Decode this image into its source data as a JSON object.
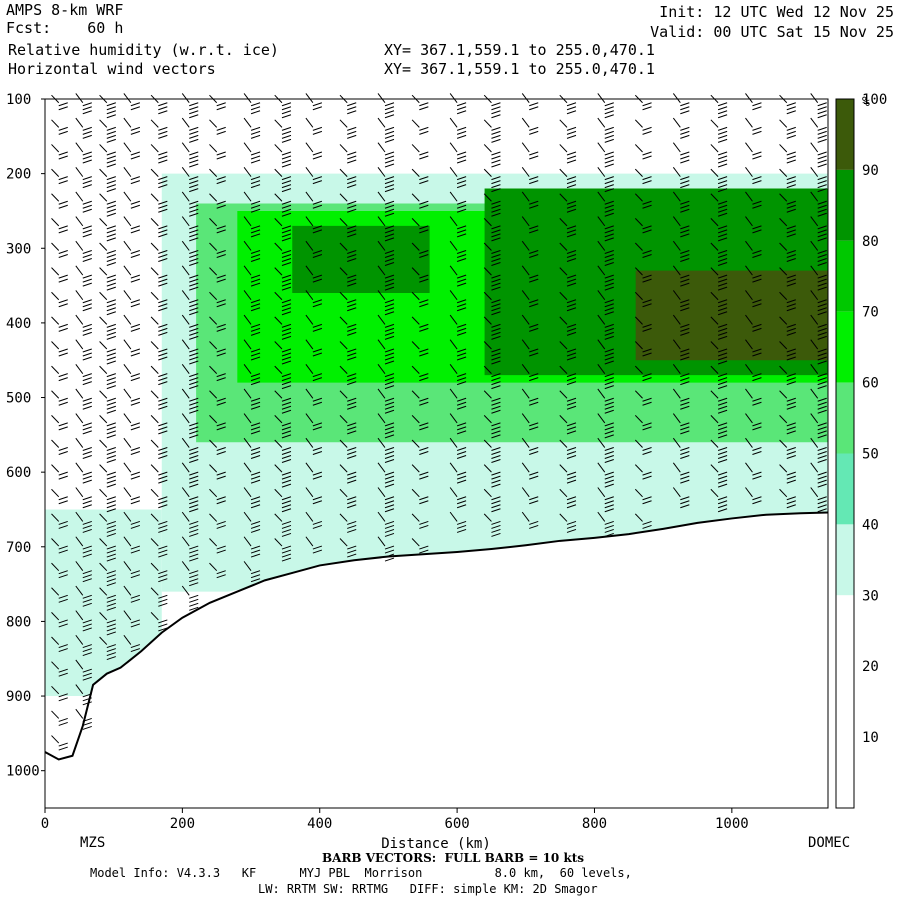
{
  "header": {
    "model": "AMPS 8-km WRF",
    "fcst": "Fcst:    60 h",
    "field1": "Relative humidity (w.r.t. ice)",
    "field2": "Horizontal wind vectors",
    "xy1": "XY= 367.1,559.1 to 255.0,470.1",
    "xy2": "XY= 367.1,559.1 to 255.0,470.1",
    "init": "Init: 12 UTC Wed 12 Nov 25",
    "valid": "Valid: 00 UTC Sat 15 Nov 25"
  },
  "footer": {
    "barb_note": "BARB VECTORS:  FULL BARB = 10 kts",
    "model_info": "Model Info: V4.3.3   KF      MYJ PBL  Morrison          8.0 km,  60 levels,",
    "physics": "LW: RRTM SW: RRTMG   DIFF: simple KM: 2D Smagor"
  },
  "chart_data": {
    "type": "heatmap",
    "title": "Relative humidity (w.r.t. ice)",
    "overlay": "Horizontal wind vectors (barbs)",
    "xlabel": "Distance (km)",
    "ylabel": "",
    "xlim": [
      0,
      1140
    ],
    "ylim": [
      1050,
      100
    ],
    "x_ticks": [
      0,
      200,
      400,
      600,
      800,
      1000
    ],
    "y_ticks": [
      100,
      200,
      300,
      400,
      500,
      600,
      700,
      800,
      900,
      1000
    ],
    "x_endpoint_labels": {
      "left": "MZS",
      "right": "DOMEC"
    },
    "colorbar": {
      "unit": "%",
      "ticks": [
        10,
        20,
        30,
        40,
        50,
        60,
        70,
        80,
        90,
        100
      ],
      "colors": [
        "#ffffff",
        "#ffffff",
        "#ffffff",
        "#c8f8e8",
        "#64e8b4",
        "#5ae678",
        "#00f000",
        "#00c800",
        "#009400",
        "#3c5a0a"
      ],
      "ranges": [
        [
          0,
          10
        ],
        [
          10,
          20
        ],
        [
          20,
          30
        ],
        [
          30,
          40
        ],
        [
          40,
          50
        ],
        [
          50,
          60
        ],
        [
          60,
          70
        ],
        [
          70,
          80
        ],
        [
          80,
          90
        ],
        [
          90,
          110
        ]
      ]
    },
    "terrain_surface_hpa": [
      [
        0,
        975
      ],
      [
        20,
        985
      ],
      [
        40,
        980
      ],
      [
        55,
        940
      ],
      [
        70,
        885
      ],
      [
        90,
        870
      ],
      [
        110,
        862
      ],
      [
        140,
        840
      ],
      [
        170,
        815
      ],
      [
        200,
        795
      ],
      [
        240,
        775
      ],
      [
        280,
        760
      ],
      [
        320,
        745
      ],
      [
        360,
        735
      ],
      [
        400,
        725
      ],
      [
        450,
        718
      ],
      [
        500,
        713
      ],
      [
        550,
        710
      ],
      [
        600,
        707
      ],
      [
        650,
        703
      ],
      [
        700,
        698
      ],
      [
        750,
        692
      ],
      [
        800,
        688
      ],
      [
        850,
        683
      ],
      [
        900,
        676
      ],
      [
        950,
        668
      ],
      [
        1000,
        662
      ],
      [
        1050,
        657
      ],
      [
        1100,
        655
      ],
      [
        1140,
        654
      ]
    ],
    "rh_regions": [
      {
        "x": [
          0,
          170
        ],
        "p": [
          650,
          900
        ],
        "rh": 35
      },
      {
        "x": [
          170,
          1140
        ],
        "p": [
          200,
          760
        ],
        "rh": 35
      },
      {
        "x": [
          220,
          1140
        ],
        "p": [
          240,
          560
        ],
        "rh": 55
      },
      {
        "x": [
          280,
          1140
        ],
        "p": [
          250,
          480
        ],
        "rh": 68
      },
      {
        "x": [
          360,
          560
        ],
        "p": [
          270,
          360
        ],
        "rh": 80
      },
      {
        "x": [
          640,
          1140
        ],
        "p": [
          220,
          470
        ],
        "rh": 80
      },
      {
        "x": [
          860,
          1140
        ],
        "p": [
          330,
          450
        ],
        "rh": 92
      }
    ],
    "barb_columns_km": [
      20,
      55,
      90,
      125,
      165,
      210,
      250,
      300,
      345,
      390,
      440,
      495,
      545,
      600,
      650,
      705,
      760,
      815,
      870,
      925,
      980,
      1030,
      1080,
      1125
    ]
  }
}
